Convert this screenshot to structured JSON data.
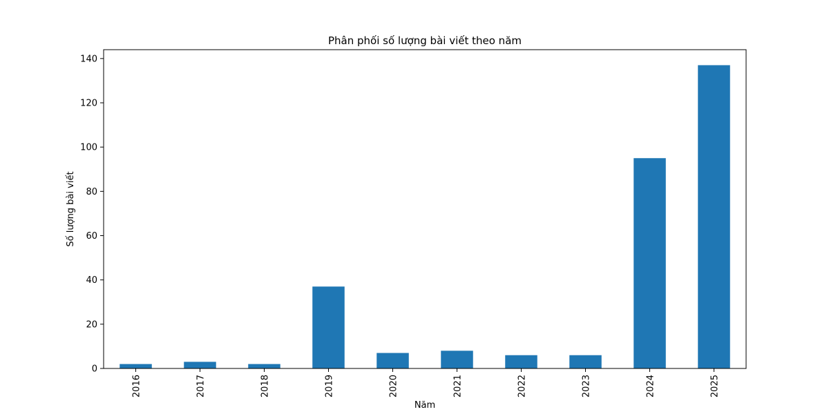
{
  "chart_data": {
    "type": "bar",
    "title": "Phân phối số lượng bài viết theo năm",
    "xlabel": "Năm",
    "ylabel": "Số lượng bài viết",
    "categories": [
      "2016",
      "2017",
      "2018",
      "2019",
      "2020",
      "2021",
      "2022",
      "2023",
      "2024",
      "2025"
    ],
    "values": [
      2,
      3,
      2,
      37,
      7,
      8,
      6,
      6,
      95,
      137
    ],
    "ylim": [
      0,
      144
    ],
    "yticks": [
      0,
      20,
      40,
      60,
      80,
      100,
      120,
      140
    ],
    "grid": false,
    "legend": false,
    "bar_color": "#1f77b4",
    "x_tick_rotation": "vertical"
  }
}
